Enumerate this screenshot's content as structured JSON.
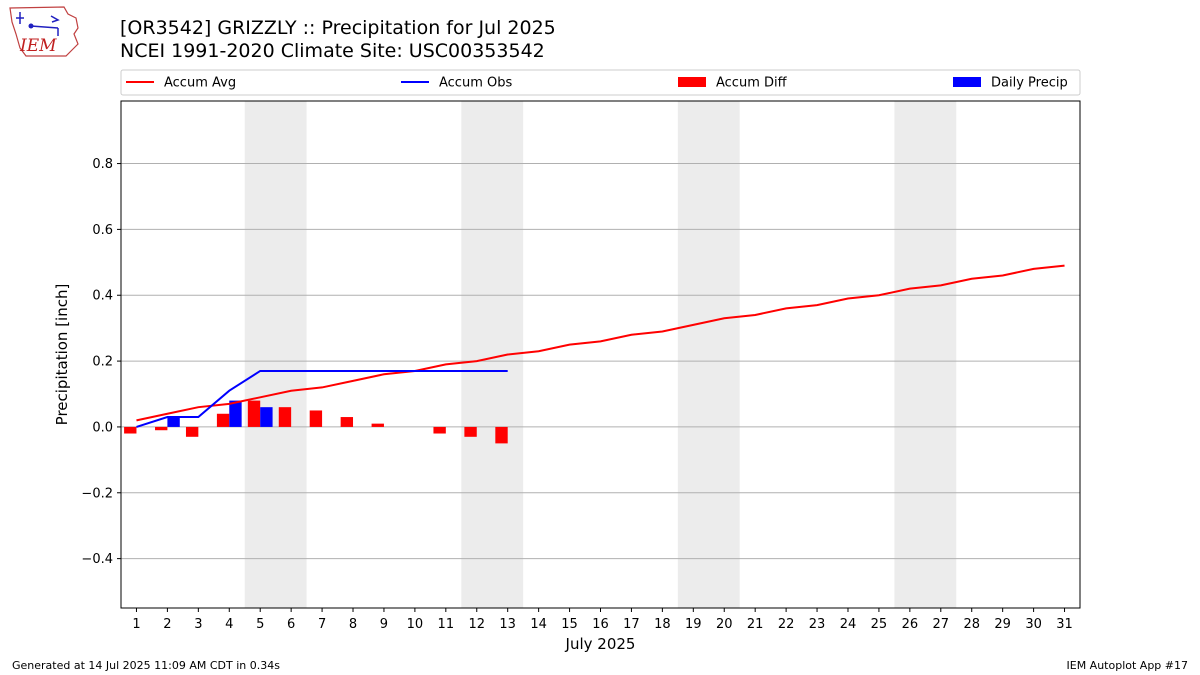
{
  "header": {
    "logo_text": "IEM",
    "title_line1": "[OR3542] GRIZZLY :: Precipitation for Jul 2025",
    "title_line2": "NCEI 1991-2020 Climate Site: USC00353542"
  },
  "footer": {
    "left": "Generated at 14 Jul 2025 11:09 AM CDT in 0.34s",
    "right": "IEM Autoplot App #17"
  },
  "colors": {
    "avg": "#ff0000",
    "obs": "#0000ff",
    "weekend_shade": "#ececec",
    "grid": "#b0b0b0"
  },
  "chart_data": {
    "type": "bar",
    "xlabel": "July 2025",
    "ylabel": "Precipitation [inch]",
    "xlim": [
      0.5,
      31.5
    ],
    "ylim": [
      -0.55,
      0.99
    ],
    "yticks": [
      -0.4,
      -0.2,
      0.0,
      0.2,
      0.4,
      0.6,
      0.8
    ],
    "ytick_labels": [
      "−0.4",
      "−0.2",
      "0.0",
      "0.2",
      "0.4",
      "0.6",
      "0.8"
    ],
    "x": [
      1,
      2,
      3,
      4,
      5,
      6,
      7,
      8,
      9,
      10,
      11,
      12,
      13,
      14,
      15,
      16,
      17,
      18,
      19,
      20,
      21,
      22,
      23,
      24,
      25,
      26,
      27,
      28,
      29,
      30,
      31
    ],
    "grid": "horizontal",
    "legend_position": "top",
    "weekend_bands": [
      [
        4.5,
        6.5
      ],
      [
        11.5,
        13.5
      ],
      [
        18.5,
        20.5
      ],
      [
        25.5,
        27.5
      ]
    ],
    "series": [
      {
        "name": "Accum Avg",
        "kind": "line",
        "color": "#ff0000",
        "x": [
          1,
          2,
          3,
          4,
          5,
          6,
          7,
          8,
          9,
          10,
          11,
          12,
          13,
          14,
          15,
          16,
          17,
          18,
          19,
          20,
          21,
          22,
          23,
          24,
          25,
          26,
          27,
          28,
          29,
          30,
          31
        ],
        "values": [
          0.02,
          0.04,
          0.06,
          0.07,
          0.09,
          0.11,
          0.12,
          0.14,
          0.16,
          0.17,
          0.19,
          0.2,
          0.22,
          0.23,
          0.25,
          0.26,
          0.28,
          0.29,
          0.31,
          0.33,
          0.34,
          0.36,
          0.37,
          0.39,
          0.4,
          0.42,
          0.43,
          0.45,
          0.46,
          0.48,
          0.49
        ]
      },
      {
        "name": "Accum Obs",
        "kind": "line",
        "color": "#0000ff",
        "x": [
          1,
          2,
          3,
          4,
          5,
          6,
          7,
          8,
          9,
          10,
          11,
          12,
          13
        ],
        "values": [
          0.0,
          0.03,
          0.03,
          0.11,
          0.17,
          0.17,
          0.17,
          0.17,
          0.17,
          0.17,
          0.17,
          0.17,
          0.17
        ]
      },
      {
        "name": "Accum Diff",
        "kind": "bar",
        "color": "#ff0000",
        "x": [
          1,
          2,
          3,
          4,
          5,
          6,
          7,
          8,
          9,
          10,
          11,
          12,
          13
        ],
        "values": [
          -0.02,
          -0.01,
          -0.03,
          0.04,
          0.08,
          0.06,
          0.05,
          0.03,
          0.01,
          0.0,
          -0.02,
          -0.03,
          -0.05
        ]
      },
      {
        "name": "Daily Precip",
        "kind": "bar",
        "color": "#0000ff",
        "x": [
          1,
          2,
          3,
          4,
          5,
          6,
          7,
          8,
          9,
          10,
          11,
          12,
          13
        ],
        "values": [
          0.0,
          0.03,
          0.0,
          0.08,
          0.06,
          0.0,
          0.0,
          0.0,
          0.0,
          0.0,
          0.0,
          0.0,
          0.0
        ]
      }
    ]
  }
}
